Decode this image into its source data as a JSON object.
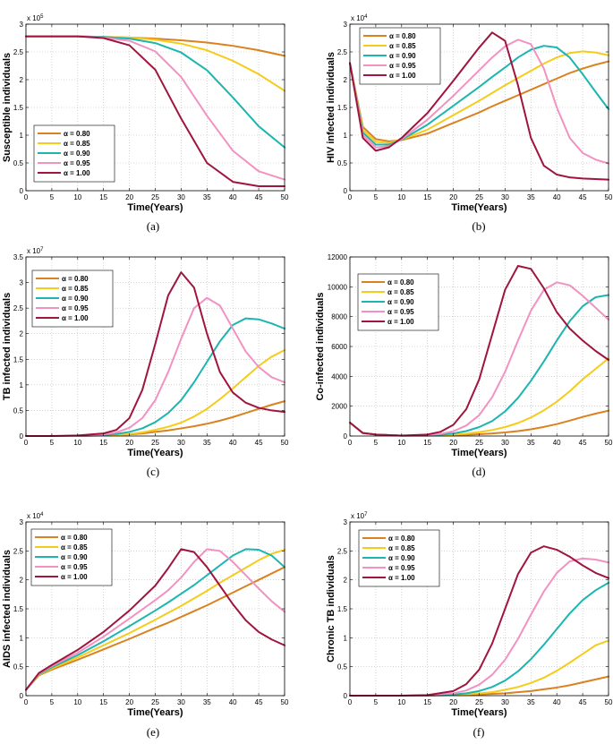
{
  "series_colors": [
    "#D9821F",
    "#F5CC1B",
    "#1CB5B0",
    "#F292C2",
    "#A0153E"
  ],
  "chart_data": [
    {
      "type": "line",
      "caption": "(a)",
      "xlabel": "Time(Years)",
      "ylabel": "Susceptible individuals",
      "exponent": {
        "base": "x 10",
        "power": "5"
      },
      "xlim": [
        0,
        50
      ],
      "xticks": [
        0,
        5,
        10,
        15,
        20,
        25,
        30,
        35,
        40,
        45,
        50
      ],
      "ylim": [
        0,
        3
      ],
      "yticks": [
        0,
        0.5,
        1,
        1.5,
        2,
        2.5,
        3
      ],
      "ytick_labels": [
        "0",
        "0.5",
        "1",
        "1.5",
        "2",
        "2.5",
        "3"
      ],
      "grid": true,
      "legend_position": "bottom-left",
      "x": [
        0,
        5,
        10,
        15,
        20,
        25,
        30,
        35,
        40,
        45,
        50
      ],
      "series": [
        {
          "name": "α = 0.80",
          "values": [
            2.78,
            2.78,
            2.78,
            2.77,
            2.76,
            2.74,
            2.71,
            2.67,
            2.61,
            2.53,
            2.43
          ]
        },
        {
          "name": "α = 0.85",
          "values": [
            2.78,
            2.78,
            2.78,
            2.77,
            2.76,
            2.72,
            2.65,
            2.53,
            2.34,
            2.1,
            1.8
          ]
        },
        {
          "name": "α = 0.90",
          "values": [
            2.78,
            2.78,
            2.78,
            2.77,
            2.74,
            2.66,
            2.49,
            2.17,
            1.68,
            1.16,
            0.78
          ]
        },
        {
          "name": "α = 0.95",
          "values": [
            2.78,
            2.78,
            2.78,
            2.76,
            2.7,
            2.51,
            2.05,
            1.35,
            0.72,
            0.35,
            0.2
          ]
        },
        {
          "name": "α = 1.00",
          "values": [
            2.78,
            2.78,
            2.78,
            2.75,
            2.62,
            2.18,
            1.3,
            0.5,
            0.16,
            0.08,
            0.08
          ]
        }
      ]
    },
    {
      "type": "line",
      "caption": "(b)",
      "xlabel": "Time(Years)",
      "ylabel": "HIV infected individuals",
      "exponent": {
        "base": "x 10",
        "power": "4"
      },
      "xlim": [
        0,
        50
      ],
      "xticks": [
        0,
        5,
        10,
        15,
        20,
        25,
        30,
        35,
        40,
        45,
        50
      ],
      "ylim": [
        0,
        3
      ],
      "yticks": [
        0,
        0.5,
        1,
        1.5,
        2,
        2.5,
        3
      ],
      "ytick_labels": [
        "0",
        "0.5",
        "1",
        "1.5",
        "2",
        "2.5",
        "3"
      ],
      "grid": true,
      "legend_position": "top-left",
      "x": [
        0,
        2.5,
        5,
        7.5,
        10,
        15,
        20,
        25,
        27.5,
        30,
        32.5,
        35,
        37.5,
        40,
        42.5,
        45,
        47.5,
        50
      ],
      "series": [
        {
          "name": "α = 0.80",
          "values": [
            2.3,
            1.15,
            0.93,
            0.89,
            0.91,
            1.03,
            1.22,
            1.41,
            1.52,
            1.62,
            1.72,
            1.82,
            1.92,
            2.02,
            2.12,
            2.2,
            2.27,
            2.33
          ]
        },
        {
          "name": "α = 0.85",
          "values": [
            2.3,
            1.1,
            0.88,
            0.86,
            0.92,
            1.1,
            1.36,
            1.62,
            1.76,
            1.9,
            2.03,
            2.16,
            2.29,
            2.4,
            2.48,
            2.51,
            2.49,
            2.44
          ]
        },
        {
          "name": "α = 0.90",
          "values": [
            2.3,
            1.05,
            0.83,
            0.83,
            0.92,
            1.19,
            1.53,
            1.87,
            2.05,
            2.22,
            2.4,
            2.54,
            2.61,
            2.58,
            2.4,
            2.1,
            1.78,
            1.47
          ]
        },
        {
          "name": "α = 0.95",
          "values": [
            2.3,
            1.0,
            0.78,
            0.8,
            0.93,
            1.28,
            1.71,
            2.17,
            2.4,
            2.6,
            2.72,
            2.64,
            2.2,
            1.5,
            0.95,
            0.68,
            0.56,
            0.49
          ]
        },
        {
          "name": "α = 1.00",
          "values": [
            2.3,
            0.95,
            0.72,
            0.78,
            0.95,
            1.4,
            1.98,
            2.58,
            2.85,
            2.7,
            1.9,
            0.95,
            0.45,
            0.29,
            0.24,
            0.22,
            0.21,
            0.2
          ]
        }
      ]
    },
    {
      "type": "line",
      "caption": "(c)",
      "xlabel": "Time(Years)",
      "ylabel": "TB infected individuals",
      "exponent": {
        "base": "x 10",
        "power": "7"
      },
      "xlim": [
        0,
        50
      ],
      "xticks": [
        0,
        5,
        10,
        15,
        20,
        25,
        30,
        35,
        40,
        45,
        50
      ],
      "ylim": [
        0,
        3.5
      ],
      "yticks": [
        0,
        0.5,
        1,
        1.5,
        2,
        2.5,
        3,
        3.5
      ],
      "ytick_labels": [
        "0",
        "0.5",
        "1",
        "1.5",
        "2",
        "2.5",
        "3",
        "3.5"
      ],
      "grid": true,
      "legend_position": "top-left",
      "x": [
        0,
        5,
        10,
        15,
        17.5,
        20,
        22.5,
        25,
        27.5,
        30,
        32.5,
        35,
        37.5,
        40,
        42.5,
        45,
        47.5,
        50
      ],
      "series": [
        {
          "name": "α = 0.80",
          "values": [
            0,
            0,
            0,
            0.01,
            0.02,
            0.03,
            0.05,
            0.08,
            0.11,
            0.15,
            0.19,
            0.24,
            0.3,
            0.37,
            0.45,
            0.53,
            0.61,
            0.68
          ]
        },
        {
          "name": "α = 0.85",
          "values": [
            0,
            0,
            0,
            0.01,
            0.02,
            0.04,
            0.07,
            0.12,
            0.18,
            0.26,
            0.38,
            0.53,
            0.72,
            0.93,
            1.15,
            1.37,
            1.55,
            1.68
          ]
        },
        {
          "name": "α = 0.90",
          "values": [
            0,
            0,
            0,
            0.02,
            0.04,
            0.08,
            0.15,
            0.27,
            0.45,
            0.7,
            1.05,
            1.45,
            1.85,
            2.17,
            2.3,
            2.28,
            2.2,
            2.1
          ]
        },
        {
          "name": "α = 0.95",
          "values": [
            0,
            0,
            0,
            0.03,
            0.07,
            0.16,
            0.35,
            0.7,
            1.25,
            1.9,
            2.5,
            2.7,
            2.55,
            2.1,
            1.65,
            1.35,
            1.15,
            1.05
          ]
        },
        {
          "name": "α = 1.00",
          "values": [
            0,
            0,
            0.01,
            0.05,
            0.12,
            0.35,
            0.9,
            1.8,
            2.75,
            3.2,
            2.9,
            2.0,
            1.25,
            0.85,
            0.65,
            0.55,
            0.5,
            0.47
          ]
        }
      ]
    },
    {
      "type": "line",
      "caption": "(d)",
      "xlabel": "Time(Years)",
      "ylabel": "Co-infected individuals",
      "exponent": null,
      "xlim": [
        0,
        50
      ],
      "xticks": [
        0,
        5,
        10,
        15,
        20,
        25,
        30,
        35,
        40,
        45,
        50
      ],
      "ylim": [
        0,
        12000
      ],
      "yticks": [
        0,
        2000,
        4000,
        6000,
        8000,
        10000,
        12000
      ],
      "ytick_labels": [
        "0",
        "2000",
        "4000",
        "6000",
        "8000",
        "10000",
        "12000"
      ],
      "grid": true,
      "legend_position": "top-left",
      "x": [
        0,
        2.5,
        5,
        10,
        15,
        17.5,
        20,
        22.5,
        25,
        27.5,
        30,
        32.5,
        35,
        37.5,
        40,
        42.5,
        45,
        47.5,
        50
      ],
      "series": [
        {
          "name": "α = 0.80",
          "values": [
            900,
            200,
            100,
            20,
            20,
            30,
            50,
            80,
            120,
            170,
            240,
            330,
            450,
            610,
            800,
            1030,
            1280,
            1500,
            1700
          ]
        },
        {
          "name": "α = 0.85",
          "values": [
            900,
            200,
            100,
            20,
            30,
            50,
            90,
            160,
            260,
            400,
            600,
            870,
            1240,
            1720,
            2300,
            3000,
            3800,
            4500,
            5200
          ]
        },
        {
          "name": "α = 0.90",
          "values": [
            900,
            200,
            100,
            20,
            40,
            80,
            170,
            330,
            600,
            1000,
            1650,
            2550,
            3700,
            5000,
            6400,
            7700,
            8700,
            9300,
            9450
          ]
        },
        {
          "name": "α = 0.95",
          "values": [
            900,
            200,
            100,
            20,
            60,
            140,
            320,
            700,
            1400,
            2600,
            4300,
            6400,
            8400,
            9800,
            10300,
            10100,
            9400,
            8600,
            7800
          ]
        },
        {
          "name": "α = 1.00",
          "values": [
            900,
            200,
            100,
            30,
            100,
            280,
            750,
            1800,
            3800,
            6800,
            9800,
            11400,
            11200,
            9900,
            8300,
            7200,
            6400,
            5700,
            5100
          ]
        }
      ]
    },
    {
      "type": "line",
      "caption": "(e)",
      "xlabel": "Time(Years)",
      "ylabel": "AIDS infected individuals",
      "exponent": {
        "base": "x 10",
        "power": "4"
      },
      "xlim": [
        0,
        50
      ],
      "xticks": [
        0,
        5,
        10,
        15,
        20,
        25,
        30,
        35,
        40,
        45,
        50
      ],
      "ylim": [
        0,
        3
      ],
      "yticks": [
        0,
        0.5,
        1,
        1.5,
        2,
        2.5,
        3
      ],
      "ytick_labels": [
        "0",
        "0.5",
        "1",
        "1.5",
        "2",
        "2.5",
        "3"
      ],
      "grid": true,
      "legend_position": "top-left",
      "x": [
        0,
        2.5,
        5,
        10,
        15,
        20,
        25,
        27.5,
        30,
        32.5,
        35,
        37.5,
        40,
        42.5,
        45,
        47.5,
        50
      ],
      "series": [
        {
          "name": "α = 0.80",
          "values": [
            0.1,
            0.35,
            0.45,
            0.62,
            0.8,
            0.98,
            1.17,
            1.26,
            1.36,
            1.46,
            1.56,
            1.67,
            1.78,
            1.89,
            2.0,
            2.11,
            2.22
          ]
        },
        {
          "name": "α = 0.85",
          "values": [
            0.1,
            0.36,
            0.47,
            0.66,
            0.87,
            1.08,
            1.31,
            1.43,
            1.55,
            1.68,
            1.81,
            1.95,
            2.08,
            2.21,
            2.34,
            2.45,
            2.52
          ]
        },
        {
          "name": "α = 0.90",
          "values": [
            0.1,
            0.37,
            0.49,
            0.7,
            0.94,
            1.2,
            1.47,
            1.61,
            1.76,
            1.91,
            2.08,
            2.25,
            2.42,
            2.53,
            2.52,
            2.42,
            2.22
          ]
        },
        {
          "name": "α = 0.95",
          "values": [
            0.1,
            0.38,
            0.51,
            0.74,
            1.02,
            1.33,
            1.65,
            1.82,
            2.04,
            2.31,
            2.53,
            2.5,
            2.31,
            2.08,
            1.85,
            1.63,
            1.45
          ]
        },
        {
          "name": "α = 1.00",
          "values": [
            0.1,
            0.39,
            0.53,
            0.79,
            1.1,
            1.47,
            1.9,
            2.2,
            2.53,
            2.48,
            2.22,
            1.9,
            1.58,
            1.3,
            1.1,
            0.97,
            0.87
          ]
        }
      ]
    },
    {
      "type": "line",
      "caption": "(f)",
      "xlabel": "Time(Years)",
      "ylabel": "Chronic TB individuals",
      "exponent": {
        "base": "x 10",
        "power": "7"
      },
      "xlim": [
        0,
        50
      ],
      "xticks": [
        0,
        5,
        10,
        15,
        20,
        25,
        30,
        35,
        40,
        45,
        50
      ],
      "ylim": [
        0,
        3
      ],
      "yticks": [
        0,
        0.5,
        1,
        1.5,
        2,
        2.5,
        3
      ],
      "ytick_labels": [
        "0",
        "0.5",
        "1",
        "1.5",
        "2",
        "2.5",
        "3"
      ],
      "grid": true,
      "legend_position": "top-left",
      "x": [
        0,
        5,
        10,
        15,
        20,
        22.5,
        25,
        27.5,
        30,
        32.5,
        35,
        37.5,
        40,
        42.5,
        45,
        47.5,
        50
      ],
      "series": [
        {
          "name": "α = 0.80",
          "values": [
            0,
            0,
            0,
            0,
            0.01,
            0.01,
            0.02,
            0.03,
            0.04,
            0.06,
            0.08,
            0.11,
            0.14,
            0.18,
            0.23,
            0.28,
            0.33
          ]
        },
        {
          "name": "α = 0.85",
          "values": [
            0,
            0,
            0,
            0,
            0.01,
            0.02,
            0.04,
            0.06,
            0.1,
            0.15,
            0.22,
            0.31,
            0.43,
            0.57,
            0.72,
            0.87,
            0.95
          ]
        },
        {
          "name": "α = 0.90",
          "values": [
            0,
            0,
            0,
            0,
            0.02,
            0.04,
            0.08,
            0.15,
            0.26,
            0.42,
            0.63,
            0.88,
            1.15,
            1.42,
            1.65,
            1.82,
            1.95
          ]
        },
        {
          "name": "α = 0.95",
          "values": [
            0,
            0,
            0,
            0.01,
            0.04,
            0.09,
            0.19,
            0.36,
            0.62,
            0.98,
            1.4,
            1.8,
            2.12,
            2.32,
            2.37,
            2.35,
            2.3
          ]
        },
        {
          "name": "α = 1.00",
          "values": [
            0,
            0,
            0,
            0.01,
            0.08,
            0.2,
            0.45,
            0.9,
            1.5,
            2.1,
            2.47,
            2.58,
            2.52,
            2.4,
            2.25,
            2.12,
            2.03
          ]
        }
      ]
    }
  ]
}
